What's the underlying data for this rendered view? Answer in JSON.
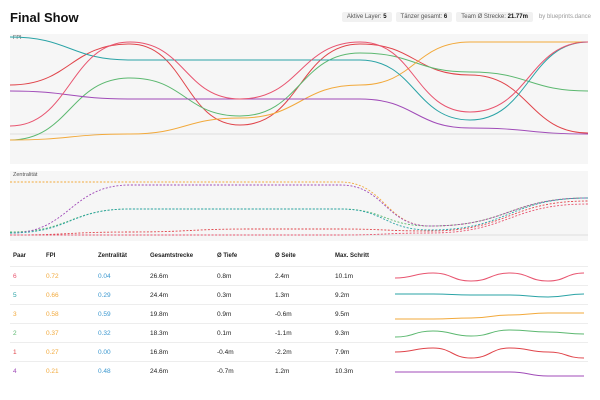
{
  "header": {
    "title": "Final Show",
    "stats": [
      {
        "label": "Aktive Layer:",
        "value": "5"
      },
      {
        "label": "Tänzer gesamt:",
        "value": "6"
      },
      {
        "label": "Team Ø Strecke:",
        "value": "21.77m"
      }
    ],
    "credit": "by blueprints.dance"
  },
  "panels": {
    "fpi_label": "FPI",
    "centrality_label": "Zentralität"
  },
  "table": {
    "headers": [
      "Paar",
      "FPI",
      "Zentralität",
      "Gesamtstrecke",
      "Ø Tiefe",
      "Ø Seite",
      "Max. Schritt"
    ],
    "rows": [
      {
        "pair": "6",
        "fpi": "0.72",
        "zentralitaet": "0.04",
        "strecke": "26.6m",
        "tiefe": "0.8m",
        "seite": "2.4m",
        "max_schritt": "10.1m",
        "color": "#e8546f"
      },
      {
        "pair": "5",
        "fpi": "0.66",
        "zentralitaet": "0.29",
        "strecke": "24.4m",
        "tiefe": "0.3m",
        "seite": "1.3m",
        "max_schritt": "9.2m",
        "color": "#2aa3a6"
      },
      {
        "pair": "3",
        "fpi": "0.58",
        "zentralitaet": "0.59",
        "strecke": "19.8m",
        "tiefe": "0.9m",
        "seite": "-0.6m",
        "max_schritt": "9.5m",
        "color": "#f2a93b"
      },
      {
        "pair": "2",
        "fpi": "0.37",
        "zentralitaet": "0.32",
        "strecke": "18.3m",
        "tiefe": "0.1m",
        "seite": "-1.1m",
        "max_schritt": "9.3m",
        "color": "#5cb870"
      },
      {
        "pair": "1",
        "fpi": "0.27",
        "zentralitaet": "0.00",
        "strecke": "16.8m",
        "tiefe": "-0.4m",
        "seite": "-2.2m",
        "max_schritt": "7.9m",
        "color": "#e0444a"
      },
      {
        "pair": "4",
        "fpi": "0.21",
        "zentralitaet": "0.48",
        "strecke": "24.6m",
        "tiefe": "-0.7m",
        "seite": "1.2m",
        "max_schritt": "10.3m",
        "color": "#a04bb8"
      }
    ]
  },
  "colors": {
    "fpi_value": "#f2a93b",
    "zentralitaet_value": "#3a97cf",
    "baseline": "#c8c8c8"
  }
}
